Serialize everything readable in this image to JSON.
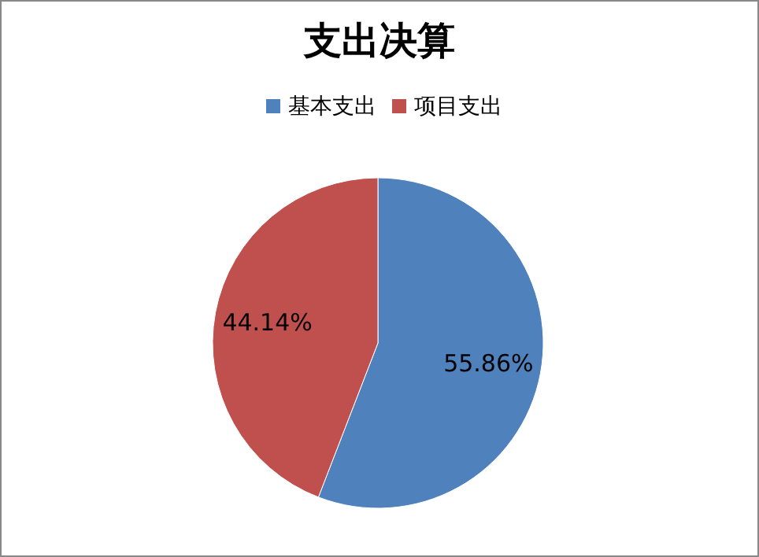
{
  "chart_data": {
    "type": "pie",
    "title": "支出决算",
    "categories": [
      "基本支出",
      "项目支出"
    ],
    "values": [
      55.86,
      44.14
    ],
    "colors": [
      "#4f81bd",
      "#c0504d"
    ],
    "value_labels": [
      "55.86%",
      "44.14%"
    ],
    "legend": "top"
  }
}
